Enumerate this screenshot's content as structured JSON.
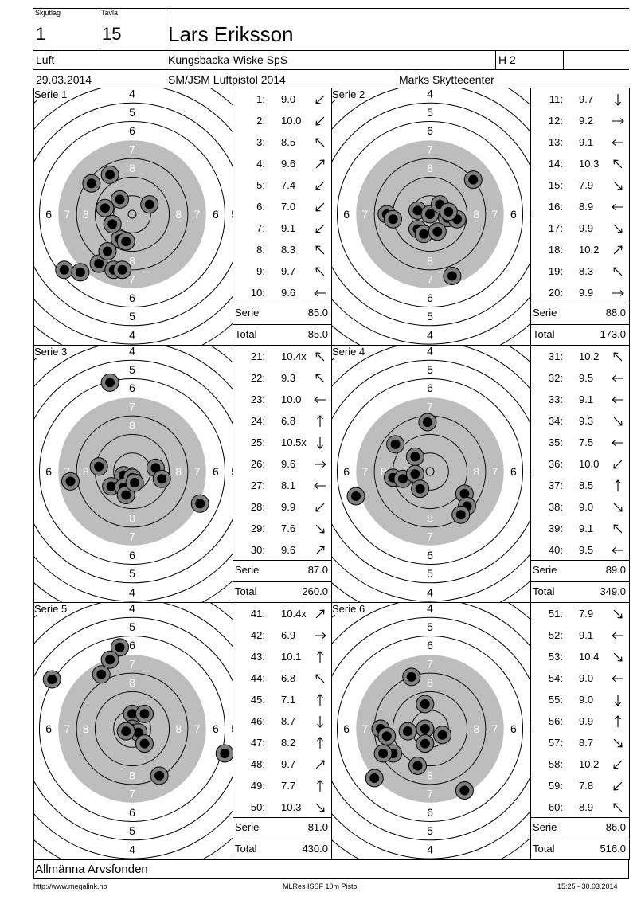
{
  "header": {
    "skjutlag_label": "Skjutlag",
    "skjutlag": "1",
    "tavla_label": "Tavla",
    "tavla": "15",
    "name": "Lars Eriksson",
    "klass": "Luft",
    "club": "Kungsbacka-Wiske SpS",
    "group": "H 2",
    "date": "29.03.2014",
    "competition": "SM/JSM Luftpistol 2014",
    "venue": "Marks Skyttecenter"
  },
  "labels": {
    "serie": "Serie",
    "total": "Total"
  },
  "series": [
    {
      "title": "Serie 1",
      "serie_sum": "85.0",
      "total": "85.0",
      "shots": [
        {
          "n": "1:",
          "v": "9.0",
          "dir": "sw"
        },
        {
          "n": "2:",
          "v": "10.0",
          "dir": "sw"
        },
        {
          "n": "3:",
          "v": "8.5",
          "dir": "nw"
        },
        {
          "n": "4:",
          "v": "9.6",
          "dir": "ne"
        },
        {
          "n": "5:",
          "v": "7.4",
          "dir": "sw"
        },
        {
          "n": "6:",
          "v": "7.0",
          "dir": "sw"
        },
        {
          "n": "7:",
          "v": "9.1",
          "dir": "sw"
        },
        {
          "n": "8:",
          "v": "8.3",
          "dir": "nw"
        },
        {
          "n": "9:",
          "v": "9.7",
          "dir": "nw"
        },
        {
          "n": "10:",
          "v": "9.6",
          "dir": "w"
        }
      ],
      "hits": [
        [
          -0.27,
          0.4
        ],
        [
          -0.2,
          0.3
        ],
        [
          -0.1,
          0.2
        ],
        [
          -0.15,
          0.45
        ],
        [
          -0.08,
          0.45
        ],
        [
          -0.33,
          -0.25
        ],
        [
          -0.18,
          -0.32
        ],
        [
          -0.1,
          -0.12
        ],
        [
          -0.22,
          -0.05
        ],
        [
          0.14,
          -0.08
        ],
        [
          -0.16,
          0.08
        ],
        [
          -0.05,
          0.22
        ],
        [
          -0.55,
          0.45
        ],
        [
          -0.42,
          0.47
        ]
      ]
    },
    {
      "title": "Serie 2",
      "serie_sum": "88.0",
      "total": "173.0",
      "shots": [
        {
          "n": "11:",
          "v": "9.7",
          "dir": "s"
        },
        {
          "n": "12:",
          "v": "9.2",
          "dir": "e"
        },
        {
          "n": "13:",
          "v": "9.1",
          "dir": "w"
        },
        {
          "n": "14:",
          "v": "10.3",
          "dir": "nw"
        },
        {
          "n": "15:",
          "v": "7.9",
          "dir": "se"
        },
        {
          "n": "16:",
          "v": "8.9",
          "dir": "w"
        },
        {
          "n": "17:",
          "v": "9.9",
          "dir": "se"
        },
        {
          "n": "18:",
          "v": "10.2",
          "dir": "ne"
        },
        {
          "n": "19:",
          "v": "8.3",
          "dir": "nw"
        },
        {
          "n": "20:",
          "v": "9.9",
          "dir": "e"
        }
      ],
      "hits": [
        [
          0.35,
          -0.28
        ],
        [
          -0.35,
          0.0
        ],
        [
          -0.3,
          0.04
        ],
        [
          -0.1,
          -0.03
        ],
        [
          0.0,
          0.0
        ],
        [
          0.08,
          -0.08
        ],
        [
          0.14,
          0.03
        ],
        [
          0.22,
          0.04
        ],
        [
          -0.1,
          0.12
        ],
        [
          -0.05,
          0.16
        ],
        [
          0.06,
          0.14
        ],
        [
          0.15,
          -0.02
        ],
        [
          0.18,
          0.5
        ]
      ]
    },
    {
      "title": "Serie 3",
      "serie_sum": "87.0",
      "total": "260.0",
      "shots": [
        {
          "n": "21:",
          "v": "10.4x",
          "dir": "nw"
        },
        {
          "n": "22:",
          "v": "9.3",
          "dir": "nw"
        },
        {
          "n": "23:",
          "v": "10.0",
          "dir": "w"
        },
        {
          "n": "24:",
          "v": "6.8",
          "dir": "n"
        },
        {
          "n": "25:",
          "v": "10.5x",
          "dir": "s"
        },
        {
          "n": "26:",
          "v": "9.6",
          "dir": "e"
        },
        {
          "n": "27:",
          "v": "8.1",
          "dir": "w"
        },
        {
          "n": "28:",
          "v": "9.9",
          "dir": "sw"
        },
        {
          "n": "29:",
          "v": "7.6",
          "dir": "se"
        },
        {
          "n": "30:",
          "v": "9.6",
          "dir": "ne"
        }
      ],
      "hits": [
        [
          -0.18,
          -0.72
        ],
        [
          -0.5,
          0.08
        ],
        [
          -0.27,
          -0.04
        ],
        [
          -0.07,
          0.03
        ],
        [
          0.0,
          0.05
        ],
        [
          0.19,
          -0.03
        ],
        [
          0.24,
          0.06
        ],
        [
          -0.17,
          0.12
        ],
        [
          -0.07,
          0.13
        ],
        [
          -0.05,
          0.19
        ],
        [
          0.02,
          0.09
        ],
        [
          0.55,
          0.26
        ]
      ]
    },
    {
      "title": "Serie 4",
      "serie_sum": "89.0",
      "total": "349.0",
      "shots": [
        {
          "n": "31:",
          "v": "10.2",
          "dir": "nw"
        },
        {
          "n": "32:",
          "v": "9.5",
          "dir": "w"
        },
        {
          "n": "33:",
          "v": "9.1",
          "dir": "w"
        },
        {
          "n": "34:",
          "v": "9.3",
          "dir": "se"
        },
        {
          "n": "35:",
          "v": "7.5",
          "dir": "w"
        },
        {
          "n": "36:",
          "v": "10.0",
          "dir": "sw"
        },
        {
          "n": "37:",
          "v": "8.5",
          "dir": "n"
        },
        {
          "n": "38:",
          "v": "9.0",
          "dir": "se"
        },
        {
          "n": "39:",
          "v": "9.1",
          "dir": "nw"
        },
        {
          "n": "40:",
          "v": "9.5",
          "dir": "w"
        }
      ],
      "hits": [
        [
          -0.02,
          -0.4
        ],
        [
          -0.28,
          -0.22
        ],
        [
          -0.12,
          -0.12
        ],
        [
          -0.3,
          0.05
        ],
        [
          -0.22,
          0.06
        ],
        [
          -0.12,
          0.02
        ],
        [
          -0.08,
          0.14
        ],
        [
          0.28,
          0.18
        ],
        [
          0.3,
          0.28
        ],
        [
          0.25,
          0.35
        ],
        [
          -0.6,
          0.2
        ]
      ]
    },
    {
      "title": "Serie 5",
      "serie_sum": "81.0",
      "total": "430.0",
      "shots": [
        {
          "n": "41:",
          "v": "10.4x",
          "dir": "ne"
        },
        {
          "n": "42:",
          "v": "6.9",
          "dir": "e"
        },
        {
          "n": "43:",
          "v": "10.1",
          "dir": "n"
        },
        {
          "n": "44:",
          "v": "6.8",
          "dir": "nw"
        },
        {
          "n": "45:",
          "v": "7.1",
          "dir": "n"
        },
        {
          "n": "46:",
          "v": "8.7",
          "dir": "s"
        },
        {
          "n": "47:",
          "v": "8.2",
          "dir": "n"
        },
        {
          "n": "48:",
          "v": "9.7",
          "dir": "ne"
        },
        {
          "n": "49:",
          "v": "7.7",
          "dir": "n"
        },
        {
          "n": "50:",
          "v": "10.3",
          "dir": "se"
        }
      ],
      "hits": [
        [
          -0.1,
          -0.66
        ],
        [
          -0.18,
          -0.56
        ],
        [
          -0.25,
          -0.44
        ],
        [
          -0.65,
          -0.4
        ],
        [
          0.0,
          -0.12
        ],
        [
          0.1,
          -0.12
        ],
        [
          0.0,
          0.0
        ],
        [
          0.05,
          0.03
        ],
        [
          0.1,
          0.12
        ],
        [
          -0.05,
          0.02
        ],
        [
          0.22,
          0.38
        ],
        [
          0.75,
          0.2
        ]
      ]
    },
    {
      "title": "Serie 6",
      "serie_sum": "86.0",
      "total": "516.0",
      "shots": [
        {
          "n": "51:",
          "v": "7.9",
          "dir": "se"
        },
        {
          "n": "52:",
          "v": "9.1",
          "dir": "w"
        },
        {
          "n": "53:",
          "v": "10.4",
          "dir": "se"
        },
        {
          "n": "54:",
          "v": "9.0",
          "dir": "w"
        },
        {
          "n": "55:",
          "v": "9.0",
          "dir": "s"
        },
        {
          "n": "56:",
          "v": "9.9",
          "dir": "n"
        },
        {
          "n": "57:",
          "v": "8.7",
          "dir": "se"
        },
        {
          "n": "58:",
          "v": "10.2",
          "dir": "sw"
        },
        {
          "n": "59:",
          "v": "7.8",
          "dir": "sw"
        },
        {
          "n": "60:",
          "v": "8.9",
          "dir": "nw"
        }
      ],
      "hits": [
        [
          -0.15,
          -0.42
        ],
        [
          -0.04,
          -0.2
        ],
        [
          -0.04,
          0.0
        ],
        [
          0.1,
          0.05
        ],
        [
          -0.04,
          0.12
        ],
        [
          -0.4,
          0.0
        ],
        [
          -0.35,
          0.06
        ],
        [
          -0.18,
          0.02
        ],
        [
          -0.3,
          0.2
        ],
        [
          -0.38,
          0.2
        ],
        [
          -0.1,
          0.3
        ],
        [
          -0.45,
          0.4
        ],
        [
          0.28,
          0.5
        ]
      ]
    }
  ],
  "sponsor": "Allmänna Arvsfonden",
  "footer": {
    "left": "http://www.megalink.no",
    "center": "MLRes ISSF 10m Pistol",
    "right": "15:25 - 30.03.2014"
  }
}
